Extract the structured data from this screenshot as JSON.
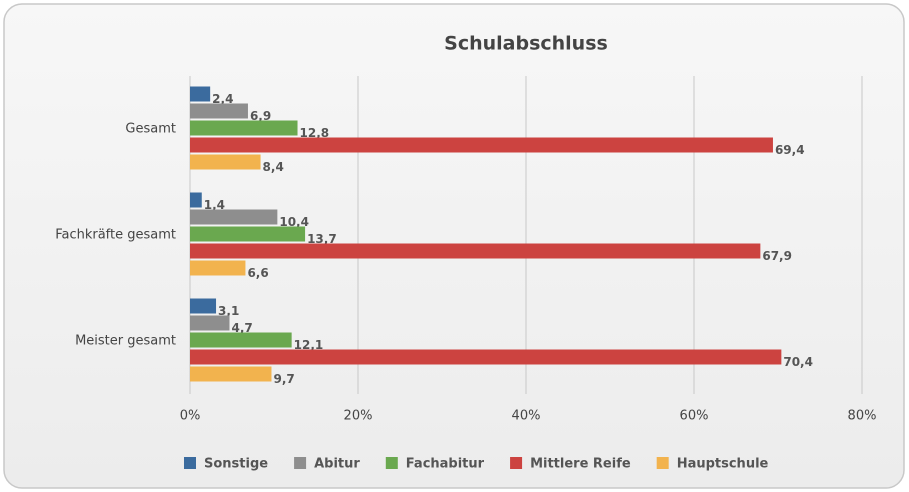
{
  "chart_data": {
    "type": "hbar",
    "title": "Schulabschluss",
    "categories": [
      "Gesamt",
      "Fachkräfte gesamt",
      "Meister gesamt"
    ],
    "series": [
      {
        "name": "Sonstige",
        "color": "#3b6b9e",
        "values": [
          2.4,
          1.4,
          3.1
        ],
        "value_labels": [
          "2,4",
          "1,4",
          "3,1"
        ]
      },
      {
        "name": "Abitur",
        "color": "#8e8e8e",
        "values": [
          6.9,
          10.4,
          4.7
        ],
        "value_labels": [
          "6,9",
          "10,4",
          "4,7"
        ]
      },
      {
        "name": "Fachabitur",
        "color": "#6aa84f",
        "values": [
          12.8,
          13.7,
          12.1
        ],
        "value_labels": [
          "12,8",
          "13,7",
          "12,1"
        ]
      },
      {
        "name": "Mittlere Reife",
        "color": "#cc4340",
        "values": [
          69.4,
          67.9,
          70.4
        ],
        "value_labels": [
          "69,4",
          "67,9",
          "70,4"
        ]
      },
      {
        "name": "Hauptschule",
        "color": "#f2b34e",
        "values": [
          8.4,
          6.6,
          9.7
        ],
        "value_labels": [
          "8,4",
          "6,6",
          "9,7"
        ]
      }
    ],
    "xlim": [
      0,
      80
    ],
    "xticks": [
      {
        "value": 0,
        "label": "0%"
      },
      {
        "value": 20,
        "label": "20%"
      },
      {
        "value": 40,
        "label": "40%"
      },
      {
        "value": 60,
        "label": "60%"
      },
      {
        "value": 80,
        "label": "80%"
      }
    ],
    "grid": true,
    "legend": "bottom"
  }
}
